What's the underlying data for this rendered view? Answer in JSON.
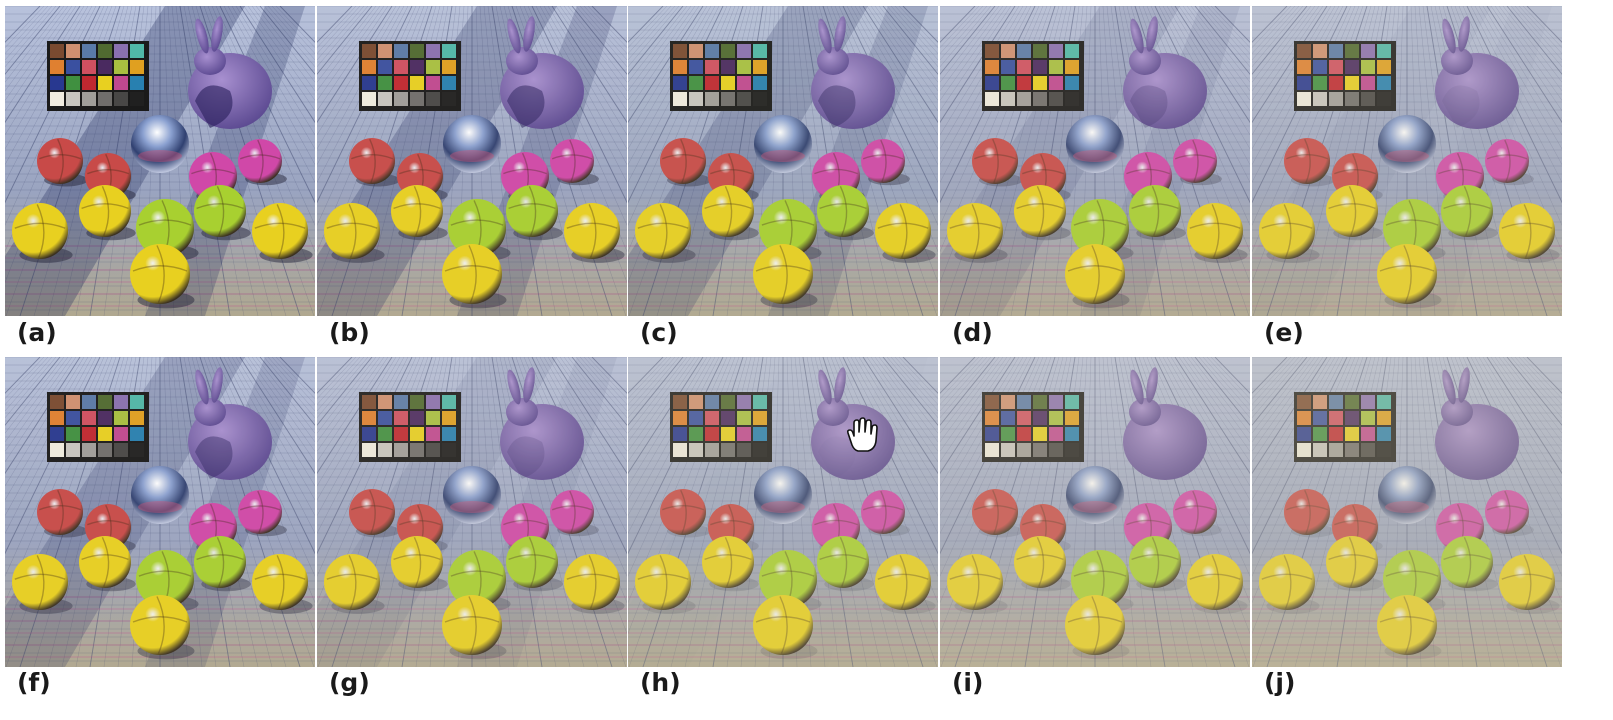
{
  "panels": [
    {
      "label": "(a)",
      "shadow": 1.0,
      "haze": 0.0,
      "cursor": false
    },
    {
      "label": "(b)",
      "shadow": 0.85,
      "haze": 0.05,
      "cursor": false
    },
    {
      "label": "(c)",
      "shadow": 0.7,
      "haze": 0.08,
      "cursor": false
    },
    {
      "label": "(d)",
      "shadow": 0.4,
      "haze": 0.12,
      "cursor": false
    },
    {
      "label": "(e)",
      "shadow": 0.15,
      "haze": 0.18,
      "cursor": false
    },
    {
      "label": "(f)",
      "shadow": 0.7,
      "haze": 0.05,
      "cursor": false
    },
    {
      "label": "(g)",
      "shadow": 0.3,
      "haze": 0.12,
      "cursor": false
    },
    {
      "label": "(h)",
      "shadow": 0.05,
      "haze": 0.2,
      "cursor": true
    },
    {
      "label": "(i)",
      "shadow": 0.0,
      "haze": 0.25,
      "cursor": false
    },
    {
      "label": "(j)",
      "shadow": 0.0,
      "haze": 0.3,
      "cursor": false
    }
  ],
  "colors": {
    "checker": [
      "#7a4a30",
      "#d09070",
      "#5a7aa8",
      "#506a30",
      "#8a70b0",
      "#50b8a8",
      "#e08030",
      "#3a50a0",
      "#d05060",
      "#4a2a60",
      "#a8c040",
      "#e0a020",
      "#283890",
      "#409040",
      "#c02830",
      "#e8d020",
      "#c04890",
      "#2880b0",
      "#f0ece0",
      "#c8c6c0",
      "#a09e9a",
      "#706e6c",
      "#484746",
      "#202020"
    ],
    "red_sphere": "#c84a48",
    "magenta_sphere": "#d048a8",
    "yellow_sphere": "#e8d020",
    "green_sphere": "#a8d030",
    "bunny": "#8a70b8",
    "floor": "#9aa4c0"
  },
  "icons": {
    "cursor": "hand-cursor-icon"
  }
}
